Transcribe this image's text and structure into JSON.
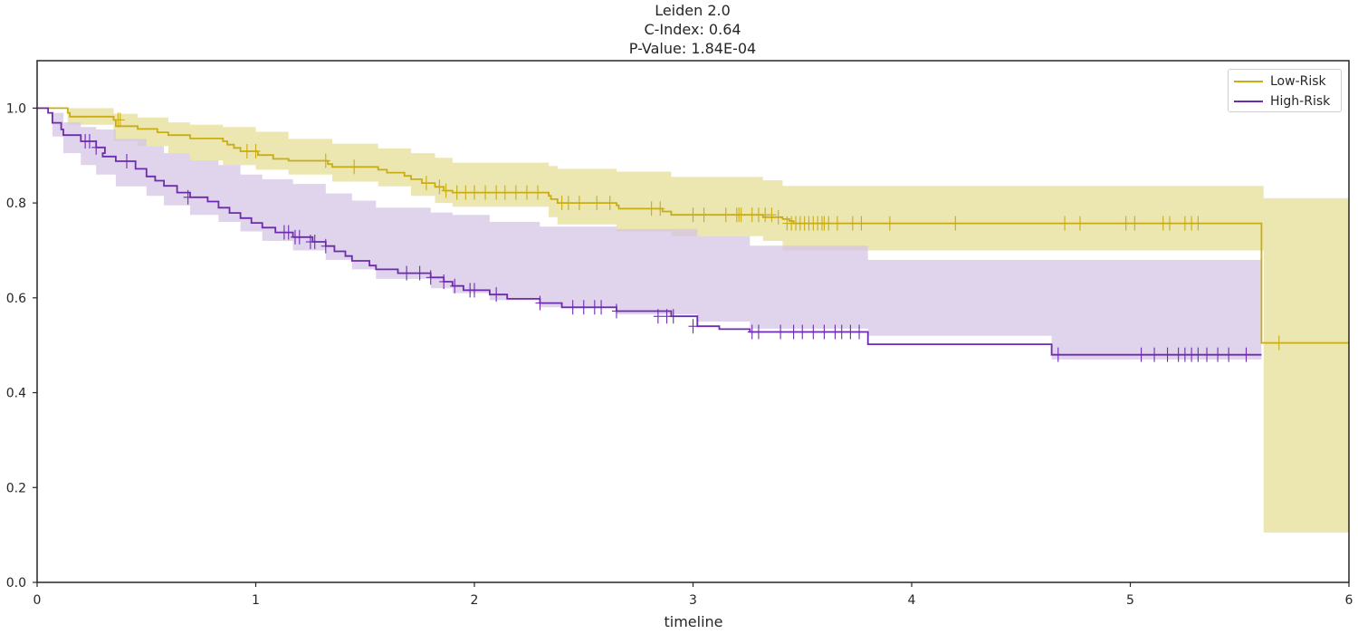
{
  "title_lines": [
    "Leiden 2.0",
    "C-Index: 0.64",
    "P-Value: 1.84E-04"
  ],
  "chart_data": {
    "type": "line",
    "xlabel": "timeline",
    "ylabel": "",
    "xlim": [
      0,
      6
    ],
    "ylim": [
      0,
      1.1
    ],
    "xticks": [
      0,
      1,
      2,
      3,
      4,
      5,
      6
    ],
    "yticks": [
      0.0,
      0.2,
      0.4,
      0.6,
      0.8,
      1.0
    ],
    "ytick_labels": [
      "0.0",
      "0.2",
      "0.4",
      "0.6",
      "0.8",
      "1.0"
    ],
    "grid": false,
    "legend_position": "top-right",
    "step": true,
    "series": [
      {
        "name": "Low-Risk",
        "color": "#c8ad14",
        "band_color": "#e6dd96",
        "points": [
          [
            0,
            1.0
          ],
          [
            0.14,
            0.99
          ],
          [
            0.15,
            0.982
          ],
          [
            0.35,
            0.975
          ],
          [
            0.36,
            0.962
          ],
          [
            0.46,
            0.956
          ],
          [
            0.55,
            0.949
          ],
          [
            0.6,
            0.943
          ],
          [
            0.7,
            0.936
          ],
          [
            0.85,
            0.93
          ],
          [
            0.87,
            0.923
          ],
          [
            0.9,
            0.916
          ],
          [
            0.93,
            0.909
          ],
          [
            1.01,
            0.901
          ],
          [
            1.08,
            0.893
          ],
          [
            1.15,
            0.889
          ],
          [
            1.33,
            0.882
          ],
          [
            1.35,
            0.876
          ],
          [
            1.56,
            0.87
          ],
          [
            1.6,
            0.864
          ],
          [
            1.68,
            0.857
          ],
          [
            1.71,
            0.85
          ],
          [
            1.76,
            0.842
          ],
          [
            1.82,
            0.834
          ],
          [
            1.86,
            0.826
          ],
          [
            1.9,
            0.822
          ],
          [
            2.34,
            0.815
          ],
          [
            2.35,
            0.808
          ],
          [
            2.38,
            0.8
          ],
          [
            2.65,
            0.795
          ],
          [
            2.66,
            0.788
          ],
          [
            2.86,
            0.782
          ],
          [
            2.9,
            0.775
          ],
          [
            3.32,
            0.77
          ],
          [
            3.41,
            0.766
          ],
          [
            3.44,
            0.762
          ],
          [
            3.46,
            0.757
          ],
          [
            5.6,
            0.505
          ],
          [
            6,
            0.505
          ]
        ],
        "ci_upper": [
          [
            0,
            1.0
          ],
          [
            0.14,
            1.0
          ],
          [
            0.35,
            0.988
          ],
          [
            0.46,
            0.98
          ],
          [
            0.6,
            0.97
          ],
          [
            0.7,
            0.965
          ],
          [
            0.85,
            0.96
          ],
          [
            1.0,
            0.95
          ],
          [
            1.15,
            0.935
          ],
          [
            1.35,
            0.925
          ],
          [
            1.56,
            0.915
          ],
          [
            1.71,
            0.905
          ],
          [
            1.82,
            0.895
          ],
          [
            1.9,
            0.885
          ],
          [
            2.34,
            0.878
          ],
          [
            2.38,
            0.872
          ],
          [
            2.65,
            0.866
          ],
          [
            2.9,
            0.855
          ],
          [
            3.32,
            0.848
          ],
          [
            3.41,
            0.836
          ],
          [
            5.6,
            0.836
          ],
          [
            5.61,
            0.81
          ],
          [
            6,
            0.81
          ]
        ],
        "ci_lower": [
          [
            0,
            1.0
          ],
          [
            0.14,
            0.965
          ],
          [
            0.35,
            0.93
          ],
          [
            0.46,
            0.92
          ],
          [
            0.6,
            0.905
          ],
          [
            0.7,
            0.89
          ],
          [
            0.85,
            0.88
          ],
          [
            1.0,
            0.87
          ],
          [
            1.15,
            0.86
          ],
          [
            1.35,
            0.845
          ],
          [
            1.56,
            0.835
          ],
          [
            1.71,
            0.815
          ],
          [
            1.82,
            0.8
          ],
          [
            1.9,
            0.792
          ],
          [
            2.34,
            0.77
          ],
          [
            2.38,
            0.755
          ],
          [
            2.65,
            0.74
          ],
          [
            2.9,
            0.73
          ],
          [
            3.32,
            0.72
          ],
          [
            3.41,
            0.7
          ],
          [
            5.6,
            0.7
          ],
          [
            5.61,
            0.105
          ],
          [
            6,
            0.105
          ]
        ],
        "censors": [
          [
            0.37,
            0.975
          ],
          [
            0.38,
            0.975
          ],
          [
            0.96,
            0.909
          ],
          [
            1.0,
            0.909
          ],
          [
            1.32,
            0.889
          ],
          [
            1.45,
            0.876
          ],
          [
            1.78,
            0.842
          ],
          [
            1.84,
            0.834
          ],
          [
            1.87,
            0.826
          ],
          [
            1.92,
            0.822
          ],
          [
            1.96,
            0.822
          ],
          [
            2.0,
            0.822
          ],
          [
            2.05,
            0.822
          ],
          [
            2.1,
            0.822
          ],
          [
            2.14,
            0.822
          ],
          [
            2.19,
            0.822
          ],
          [
            2.24,
            0.822
          ],
          [
            2.29,
            0.822
          ],
          [
            2.4,
            0.8
          ],
          [
            2.43,
            0.8
          ],
          [
            2.48,
            0.8
          ],
          [
            2.56,
            0.8
          ],
          [
            2.62,
            0.8
          ],
          [
            2.81,
            0.788
          ],
          [
            2.85,
            0.788
          ],
          [
            3.0,
            0.775
          ],
          [
            3.05,
            0.775
          ],
          [
            3.15,
            0.775
          ],
          [
            3.2,
            0.775
          ],
          [
            3.21,
            0.775
          ],
          [
            3.22,
            0.775
          ],
          [
            3.27,
            0.775
          ],
          [
            3.3,
            0.775
          ],
          [
            3.33,
            0.775
          ],
          [
            3.36,
            0.775
          ],
          [
            3.39,
            0.77
          ],
          [
            3.43,
            0.757
          ],
          [
            3.45,
            0.757
          ],
          [
            3.47,
            0.757
          ],
          [
            3.49,
            0.757
          ],
          [
            3.51,
            0.757
          ],
          [
            3.53,
            0.757
          ],
          [
            3.55,
            0.757
          ],
          [
            3.57,
            0.757
          ],
          [
            3.59,
            0.757
          ],
          [
            3.6,
            0.757
          ],
          [
            3.62,
            0.757
          ],
          [
            3.66,
            0.757
          ],
          [
            3.73,
            0.757
          ],
          [
            3.77,
            0.757
          ],
          [
            3.9,
            0.757
          ],
          [
            4.2,
            0.757
          ],
          [
            4.7,
            0.757
          ],
          [
            4.77,
            0.757
          ],
          [
            4.98,
            0.757
          ],
          [
            5.02,
            0.757
          ],
          [
            5.15,
            0.757
          ],
          [
            5.18,
            0.757
          ],
          [
            5.25,
            0.757
          ],
          [
            5.28,
            0.757
          ],
          [
            5.31,
            0.757
          ],
          [
            5.68,
            0.505
          ]
        ]
      },
      {
        "name": "High-Risk",
        "color": "#6d2bb0",
        "band_color": "#d6c4e6",
        "points": [
          [
            0,
            1.0
          ],
          [
            0.05,
            0.99
          ],
          [
            0.07,
            0.969
          ],
          [
            0.11,
            0.955
          ],
          [
            0.12,
            0.943
          ],
          [
            0.2,
            0.93
          ],
          [
            0.27,
            0.917
          ],
          [
            0.31,
            0.905
          ],
          [
            0.3,
            0.898
          ],
          [
            0.36,
            0.888
          ],
          [
            0.45,
            0.872
          ],
          [
            0.5,
            0.856
          ],
          [
            0.54,
            0.847
          ],
          [
            0.58,
            0.836
          ],
          [
            0.64,
            0.822
          ],
          [
            0.7,
            0.812
          ],
          [
            0.78,
            0.803
          ],
          [
            0.83,
            0.79
          ],
          [
            0.88,
            0.779
          ],
          [
            0.93,
            0.768
          ],
          [
            0.98,
            0.758
          ],
          [
            1.03,
            0.748
          ],
          [
            1.09,
            0.738
          ],
          [
            1.17,
            0.728
          ],
          [
            1.26,
            0.718
          ],
          [
            1.32,
            0.709
          ],
          [
            1.36,
            0.698
          ],
          [
            1.41,
            0.688
          ],
          [
            1.44,
            0.678
          ],
          [
            1.52,
            0.668
          ],
          [
            1.55,
            0.66
          ],
          [
            1.65,
            0.652
          ],
          [
            1.8,
            0.643
          ],
          [
            1.86,
            0.634
          ],
          [
            1.9,
            0.625
          ],
          [
            1.95,
            0.616
          ],
          [
            2.07,
            0.607
          ],
          [
            2.15,
            0.598
          ],
          [
            2.3,
            0.589
          ],
          [
            2.4,
            0.58
          ],
          [
            2.65,
            0.572
          ],
          [
            2.9,
            0.561
          ],
          [
            3.02,
            0.54
          ],
          [
            3.12,
            0.534
          ],
          [
            3.26,
            0.528
          ],
          [
            3.8,
            0.502
          ],
          [
            4.64,
            0.48
          ],
          [
            5.6,
            0.48
          ]
        ],
        "ci_upper": [
          [
            0,
            1.0
          ],
          [
            0.07,
            0.99
          ],
          [
            0.12,
            0.97
          ],
          [
            0.2,
            0.96
          ],
          [
            0.27,
            0.955
          ],
          [
            0.36,
            0.935
          ],
          [
            0.5,
            0.92
          ],
          [
            0.58,
            0.905
          ],
          [
            0.7,
            0.89
          ],
          [
            0.83,
            0.88
          ],
          [
            0.93,
            0.86
          ],
          [
            1.03,
            0.85
          ],
          [
            1.17,
            0.84
          ],
          [
            1.32,
            0.82
          ],
          [
            1.44,
            0.805
          ],
          [
            1.55,
            0.79
          ],
          [
            1.8,
            0.78
          ],
          [
            1.9,
            0.775
          ],
          [
            2.07,
            0.76
          ],
          [
            2.3,
            0.75
          ],
          [
            2.65,
            0.745
          ],
          [
            3.02,
            0.73
          ],
          [
            3.26,
            0.71
          ],
          [
            3.8,
            0.68
          ],
          [
            4.64,
            0.68
          ],
          [
            5.6,
            0.68
          ]
        ],
        "ci_lower": [
          [
            0,
            1.0
          ],
          [
            0.07,
            0.94
          ],
          [
            0.12,
            0.905
          ],
          [
            0.2,
            0.88
          ],
          [
            0.27,
            0.86
          ],
          [
            0.36,
            0.835
          ],
          [
            0.5,
            0.815
          ],
          [
            0.58,
            0.795
          ],
          [
            0.7,
            0.775
          ],
          [
            0.83,
            0.76
          ],
          [
            0.93,
            0.74
          ],
          [
            1.03,
            0.72
          ],
          [
            1.17,
            0.7
          ],
          [
            1.32,
            0.68
          ],
          [
            1.44,
            0.66
          ],
          [
            1.55,
            0.64
          ],
          [
            1.8,
            0.62
          ],
          [
            1.9,
            0.61
          ],
          [
            2.07,
            0.595
          ],
          [
            2.3,
            0.58
          ],
          [
            2.65,
            0.565
          ],
          [
            3.02,
            0.55
          ],
          [
            3.26,
            0.535
          ],
          [
            3.8,
            0.52
          ],
          [
            4.64,
            0.47
          ],
          [
            5.6,
            0.47
          ]
        ],
        "censors": [
          [
            0.22,
            0.93
          ],
          [
            0.24,
            0.93
          ],
          [
            0.27,
            0.917
          ],
          [
            0.41,
            0.888
          ],
          [
            0.69,
            0.812
          ],
          [
            1.13,
            0.738
          ],
          [
            1.15,
            0.738
          ],
          [
            1.18,
            0.728
          ],
          [
            1.2,
            0.728
          ],
          [
            1.25,
            0.718
          ],
          [
            1.27,
            0.718
          ],
          [
            1.32,
            0.709
          ],
          [
            1.69,
            0.652
          ],
          [
            1.75,
            0.652
          ],
          [
            1.8,
            0.643
          ],
          [
            1.86,
            0.634
          ],
          [
            1.91,
            0.625
          ],
          [
            1.98,
            0.616
          ],
          [
            2.0,
            0.616
          ],
          [
            2.1,
            0.607
          ],
          [
            2.3,
            0.589
          ],
          [
            2.45,
            0.58
          ],
          [
            2.5,
            0.58
          ],
          [
            2.55,
            0.58
          ],
          [
            2.58,
            0.58
          ],
          [
            2.65,
            0.572
          ],
          [
            2.84,
            0.561
          ],
          [
            2.88,
            0.561
          ],
          [
            2.91,
            0.561
          ],
          [
            3.0,
            0.54
          ],
          [
            3.27,
            0.528
          ],
          [
            3.3,
            0.528
          ],
          [
            3.4,
            0.528
          ],
          [
            3.46,
            0.528
          ],
          [
            3.5,
            0.528
          ],
          [
            3.55,
            0.528
          ],
          [
            3.6,
            0.528
          ],
          [
            3.65,
            0.528
          ],
          [
            3.68,
            0.528
          ],
          [
            3.72,
            0.528
          ],
          [
            3.76,
            0.528
          ],
          [
            4.67,
            0.48
          ],
          [
            5.05,
            0.48
          ],
          [
            5.11,
            0.48
          ],
          [
            5.17,
            0.48
          ],
          [
            5.22,
            0.48
          ],
          [
            5.25,
            0.48
          ],
          [
            5.28,
            0.48
          ],
          [
            5.31,
            0.48
          ],
          [
            5.35,
            0.48
          ],
          [
            5.4,
            0.48
          ],
          [
            5.45,
            0.48
          ],
          [
            5.53,
            0.48
          ]
        ]
      }
    ]
  }
}
